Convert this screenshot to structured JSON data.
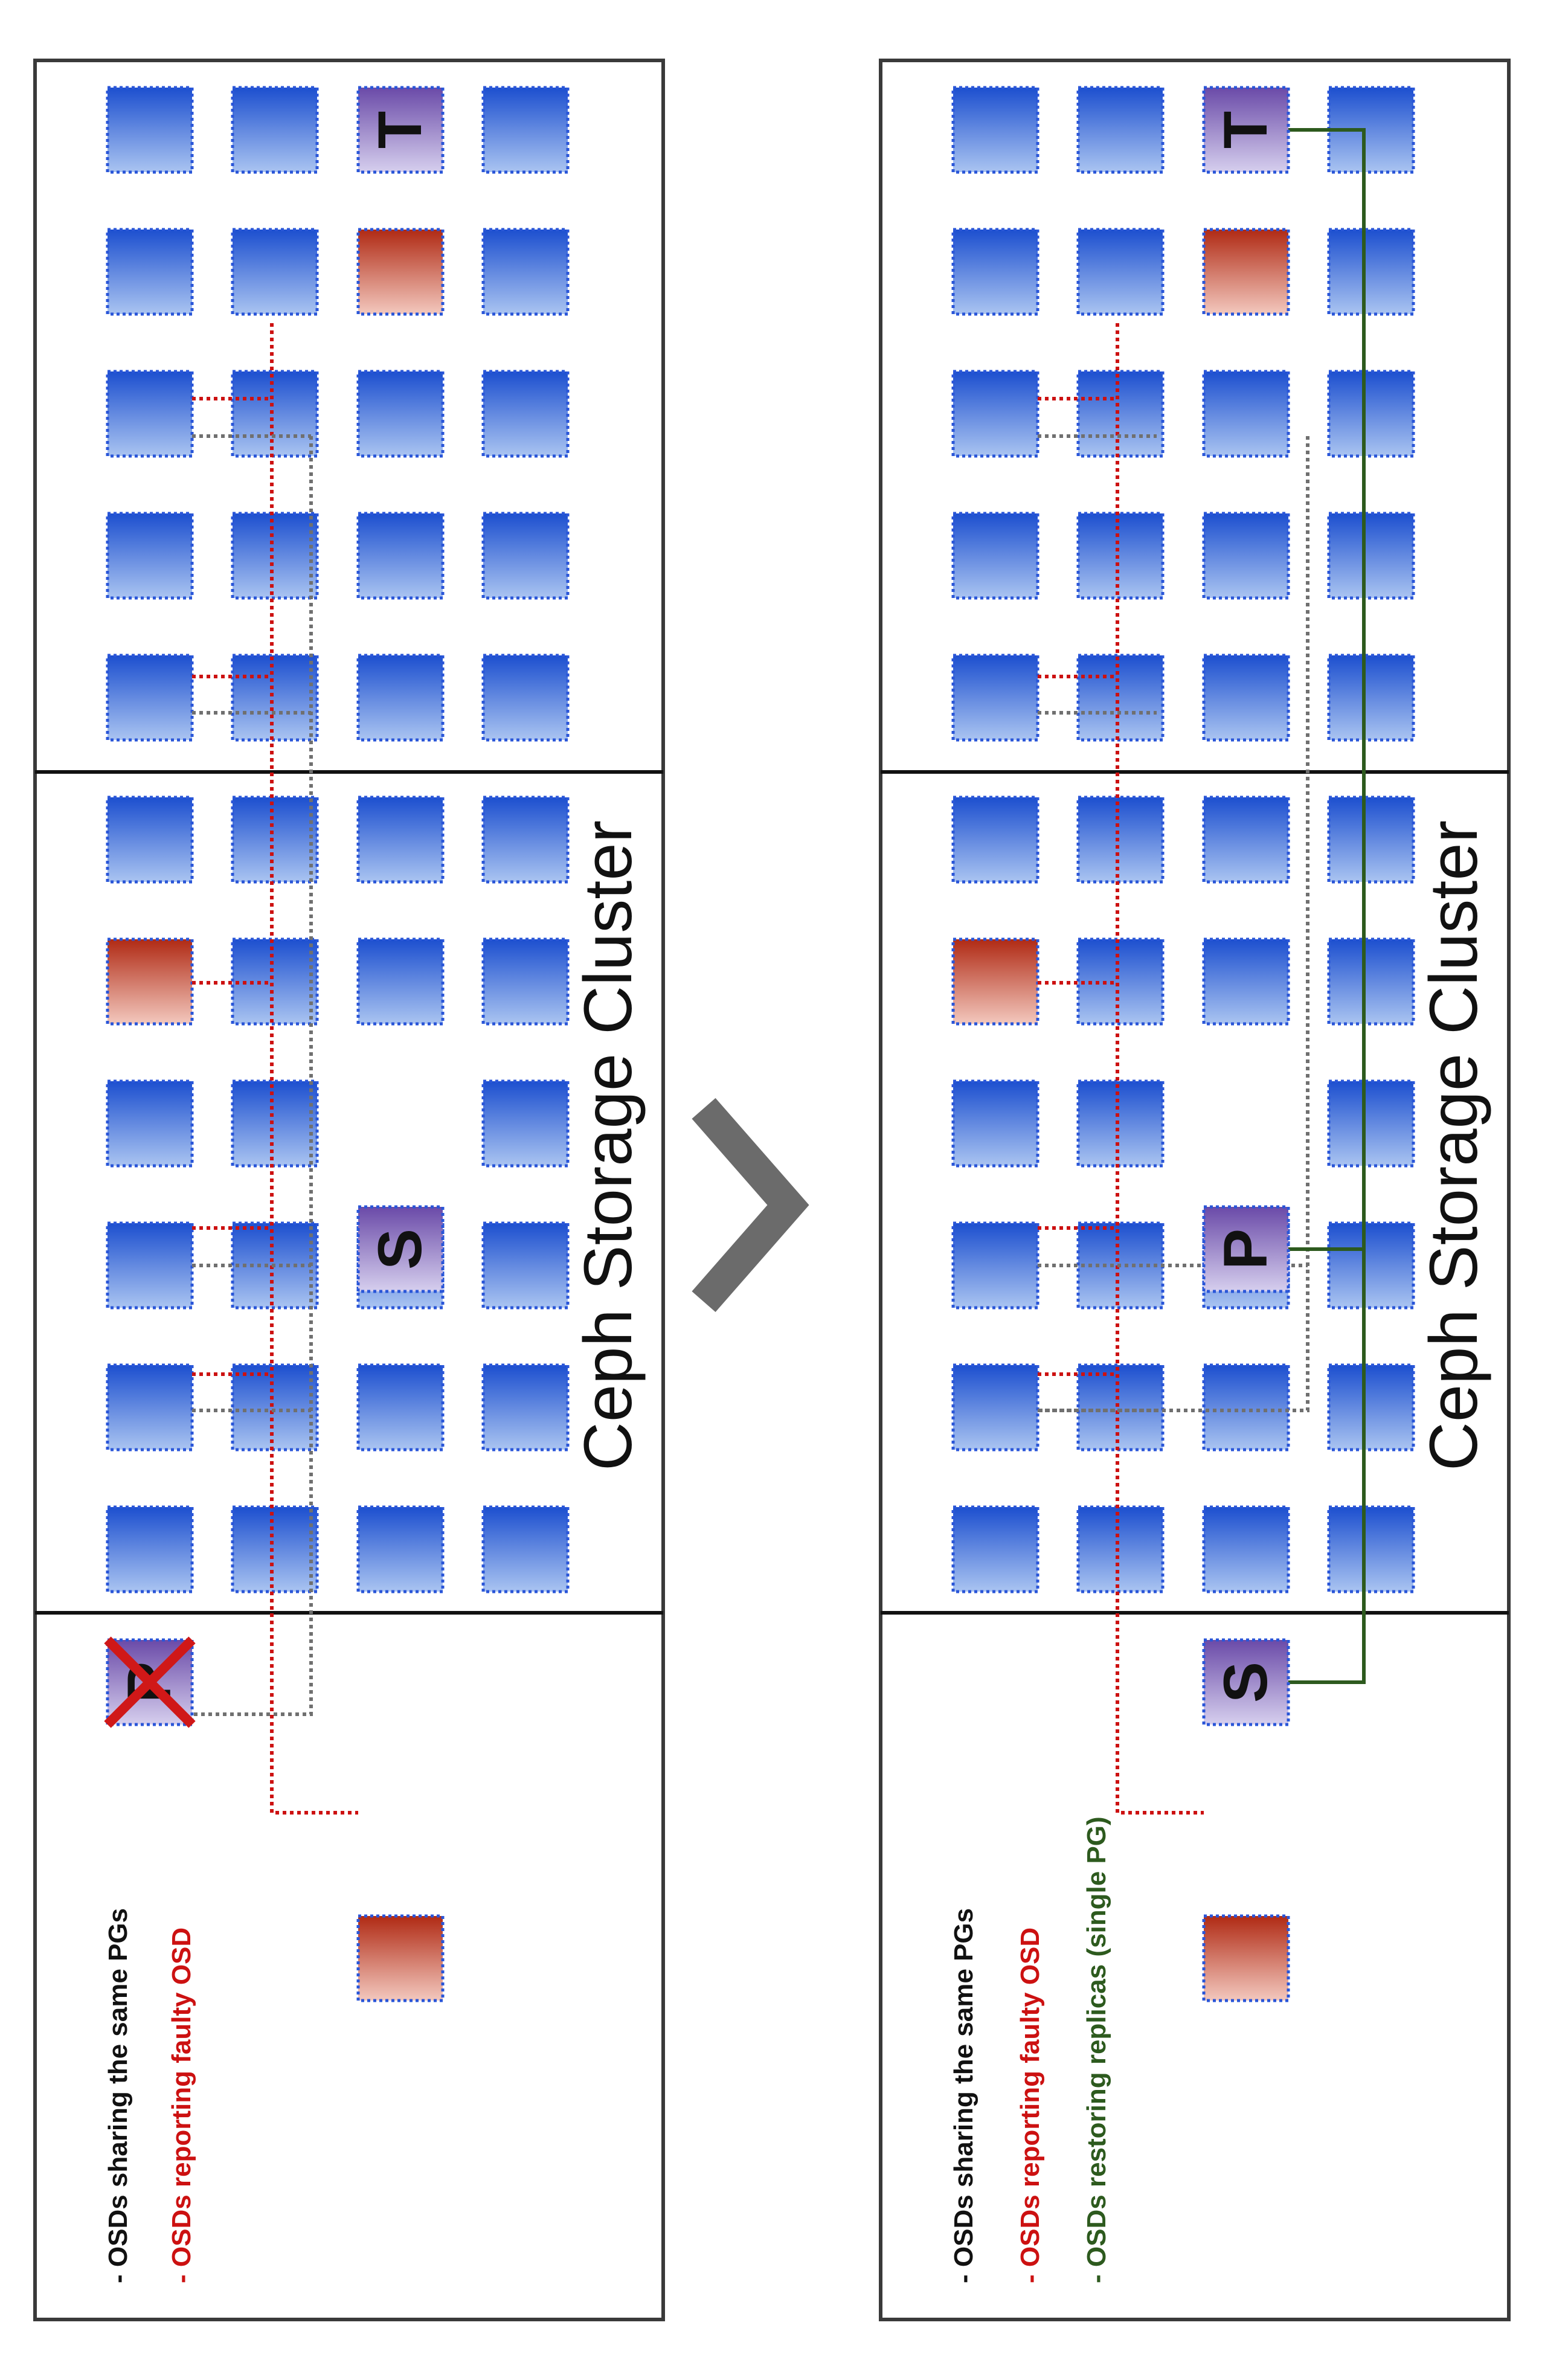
{
  "colors": {
    "panel_border": "#3a3a3a",
    "osd_blue_dark": "#1c4fcf",
    "osd_blue_light": "#a9c3f0",
    "osd_red_dark": "#b02a14",
    "osd_red_light": "#f2c6bc",
    "osd_purple_dark": "#6a4aa8",
    "osd_purple_light": "#d4ccec",
    "shared_line": "#707070",
    "reporting_line": "#cc1111",
    "restoring_line": "#2d5a1e",
    "failed_cross": "#d01818",
    "arrow": "#6b6b6b"
  },
  "panels": [
    {
      "title": "Ceph Storage Cluster",
      "legend": [
        {
          "text": "- OSDs sharing the same PGs",
          "color": "#111111"
        },
        {
          "text": "- OSDs reporting faulty OSD",
          "color": "#cc1111"
        }
      ],
      "marked_osds": [
        {
          "label": "P",
          "role": "primary",
          "state": "failed"
        },
        {
          "label": "S",
          "role": "secondary",
          "state": "ok"
        },
        {
          "label": "T",
          "role": "tertiary",
          "state": "ok"
        }
      ]
    },
    {
      "title": "Ceph Storage Cluster",
      "legend": [
        {
          "text": "- OSDs sharing the same PGs",
          "color": "#111111"
        },
        {
          "text": "- OSDs reporting faulty OSD",
          "color": "#cc1111"
        },
        {
          "text": "- OSDs restoring replicas (single PG)",
          "color": "#2d5a1e"
        }
      ],
      "marked_osds": [
        {
          "label": "S",
          "role": "secondary",
          "state": "ok"
        },
        {
          "label": "P",
          "role": "primary",
          "state": "ok"
        },
        {
          "label": "T",
          "role": "tertiary",
          "state": "ok"
        }
      ]
    }
  ],
  "transition_icon": "chevron-right-icon"
}
